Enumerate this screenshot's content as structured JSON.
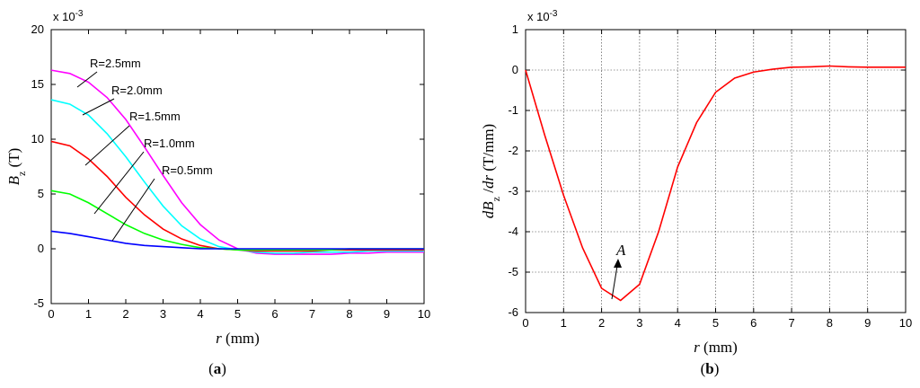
{
  "chart_data": [
    {
      "type": "line",
      "multiplier": [
        "x 10",
        "-3"
      ],
      "xlabel": [
        "r",
        " (mm)"
      ],
      "ylabel": [
        "B",
        "z",
        " (T)"
      ],
      "caption": [
        "(",
        "a",
        ")"
      ],
      "x": [
        0,
        0.5,
        1,
        1.5,
        2,
        2.5,
        3,
        3.5,
        4,
        4.5,
        5,
        5.5,
        6,
        6.5,
        7,
        7.5,
        8,
        8.5,
        9,
        9.5,
        10
      ],
      "series": [
        {
          "name": "R=2.5mm",
          "color": "#ff00ff",
          "values": [
            16.3,
            16.0,
            15.2,
            13.8,
            11.8,
            9.3,
            6.7,
            4.2,
            2.2,
            0.8,
            0.0,
            -0.4,
            -0.5,
            -0.5,
            -0.5,
            -0.5,
            -0.4,
            -0.4,
            -0.3,
            -0.3,
            -0.3
          ]
        },
        {
          "name": "R=2.0mm",
          "color": "#00ffff",
          "values": [
            13.6,
            13.2,
            12.2,
            10.5,
            8.4,
            6.1,
            3.9,
            2.1,
            0.9,
            0.2,
            -0.1,
            -0.3,
            -0.4,
            -0.4,
            -0.3,
            -0.3,
            -0.3,
            -0.2,
            -0.2,
            -0.2,
            -0.2
          ]
        },
        {
          "name": "R=1.5mm",
          "color": "#ff0000",
          "values": [
            9.8,
            9.4,
            8.2,
            6.6,
            4.7,
            3.1,
            1.8,
            0.9,
            0.3,
            0.0,
            -0.1,
            -0.2,
            -0.2,
            -0.2,
            -0.2,
            -0.1,
            -0.1,
            -0.1,
            -0.1,
            -0.1,
            -0.1
          ]
        },
        {
          "name": "R=1.0mm",
          "color": "#00ff00",
          "values": [
            5.3,
            5.0,
            4.2,
            3.2,
            2.2,
            1.4,
            0.8,
            0.4,
            0.1,
            0.0,
            -0.1,
            -0.1,
            -0.1,
            -0.1,
            -0.1,
            -0.1,
            0,
            0,
            0,
            0,
            0
          ]
        },
        {
          "name": "R=0.5mm",
          "color": "#0000ff",
          "values": [
            1.6,
            1.4,
            1.1,
            0.8,
            0.5,
            0.3,
            0.2,
            0.1,
            0.0,
            0,
            0,
            0,
            0,
            0,
            0,
            0,
            0,
            0,
            0,
            0,
            0
          ]
        }
      ],
      "xlim": [
        0,
        10
      ],
      "ylim": [
        -5,
        20
      ],
      "xticks": [
        0,
        1,
        2,
        3,
        4,
        5,
        6,
        7,
        8,
        9,
        10
      ],
      "yticks": [
        -5,
        0,
        5,
        10,
        15,
        20
      ],
      "grid": false
    },
    {
      "type": "line",
      "multiplier": [
        "x 10",
        "-3"
      ],
      "xlabel": [
        "r",
        " (mm)"
      ],
      "ylabel": [
        "dB",
        "z",
        " /",
        "dr",
        " (T/mm)"
      ],
      "caption": [
        "(",
        "b",
        ")"
      ],
      "annotation": "A",
      "x": [
        0,
        0.5,
        1,
        1.5,
        2,
        2.5,
        3,
        3.5,
        4,
        4.5,
        5,
        5.5,
        6,
        6.5,
        7,
        7.5,
        8,
        8.5,
        9,
        9.5,
        10
      ],
      "series": [
        {
          "color": "#ff0000",
          "values": [
            0,
            -1.6,
            -3.1,
            -4.4,
            -5.4,
            -5.7,
            -5.3,
            -4.0,
            -2.4,
            -1.3,
            -0.55,
            -0.2,
            -0.05,
            0.02,
            0.07,
            0.08,
            0.1,
            0.08,
            0.07,
            0.07,
            0.07
          ]
        }
      ],
      "xlim": [
        0,
        10
      ],
      "ylim": [
        -6,
        1
      ],
      "xticks": [
        0,
        1,
        2,
        3,
        4,
        5,
        6,
        7,
        8,
        9,
        10
      ],
      "yticks": [
        -6,
        -5,
        -4,
        -3,
        -2,
        -1,
        0,
        1
      ],
      "grid": true
    }
  ]
}
